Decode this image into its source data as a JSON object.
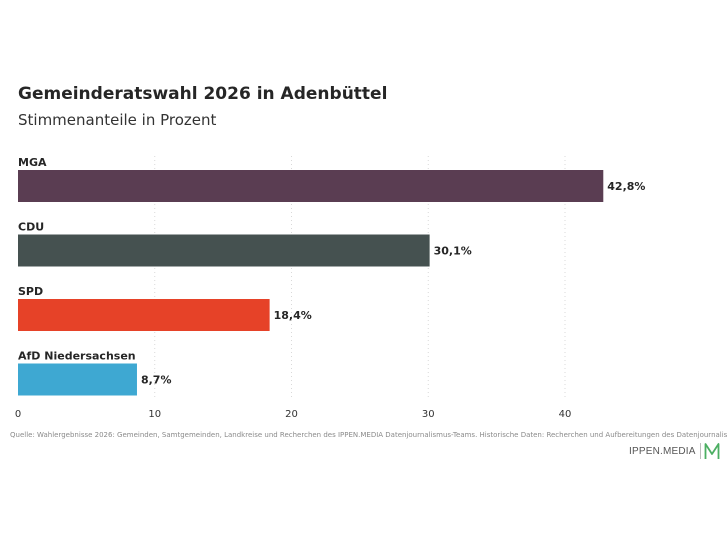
{
  "header": {
    "title": "Gemeinderatswahl 2026 in Adenbüttel",
    "subtitle": "Stimmenanteile in Prozent"
  },
  "chart_data": {
    "type": "bar",
    "orientation": "horizontal",
    "title": "Gemeinderatswahl 2026 in Adenbüttel",
    "subtitle": "Stimmenanteile in Prozent",
    "categories": [
      "MGA",
      "CDU",
      "SPD",
      "AfD Niedersachsen"
    ],
    "values": [
      42.8,
      30.1,
      18.4,
      8.7
    ],
    "value_labels": [
      "42,8%",
      "30,1%",
      "18,4%",
      "8,7%"
    ],
    "colors": [
      "#5a3d52",
      "#455150",
      "#e64228",
      "#3ea8d2"
    ],
    "xlim": [
      0,
      50
    ],
    "xticks": [
      0,
      10,
      20,
      30,
      40
    ],
    "xlabel": "",
    "ylabel": "",
    "grid": "vertical dotted",
    "legend": "none"
  },
  "footer": {
    "source": "Quelle: Wahlergebnisse 2026: Gemeinden, Samtgemeinden, Landkreise und Recherchen des IPPEN.MEDIA Datenjournalismus-Teams. Historische Daten: Recherchen und Aufbereitungen des Datenjournalismus-Teams.",
    "brand": "IPPEN.MEDIA",
    "brand_color": "#4caf63"
  }
}
